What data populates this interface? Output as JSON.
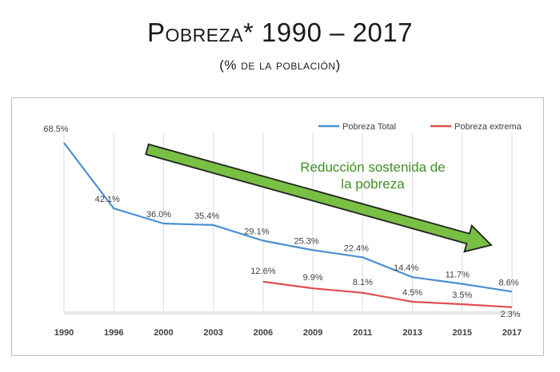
{
  "header": {
    "title_first_letter": "P",
    "title_rest_smallcaps": "obreza",
    "title_suffix": "* 1990 – 2017",
    "subtitle": "(% de la población)"
  },
  "chart_data": {
    "type": "line",
    "title": "Pobreza* 1990 – 2017",
    "subtitle": "(% de la población)",
    "categories": [
      "1990",
      "1996",
      "2000",
      "2003",
      "2006",
      "2009",
      "2011",
      "2013",
      "2015",
      "2017"
    ],
    "series": [
      {
        "name": "Pobreza Total",
        "color": "#4a8fd0",
        "values": [
          68.5,
          42.1,
          36.0,
          35.4,
          29.1,
          25.3,
          22.4,
          14.4,
          11.7,
          8.6
        ],
        "labels": [
          "68.5%",
          "42.1%",
          "36.0%",
          "35.4%",
          "29.1%",
          "25.3%",
          "22.4%",
          "14.4%",
          "11.7%",
          "8.6%"
        ]
      },
      {
        "name": "Pobreza extrema",
        "color": "#e04d4d",
        "values": [
          null,
          null,
          null,
          null,
          12.6,
          9.9,
          8.1,
          4.5,
          3.5,
          2.3
        ],
        "labels": [
          null,
          null,
          null,
          null,
          "12.6%",
          "9.9%",
          "8.1%",
          "4.5%",
          "3.5%",
          "2.3%"
        ]
      }
    ],
    "ylim": [
      0,
      75
    ],
    "grid": "vertical",
    "legend_position": "top-right",
    "annotation": {
      "lines": [
        "Reducción sostenida de",
        "la pobreza"
      ],
      "color": "#3f8f23",
      "arrow_color": "#77c043",
      "arrow_direction": "down-right"
    }
  }
}
